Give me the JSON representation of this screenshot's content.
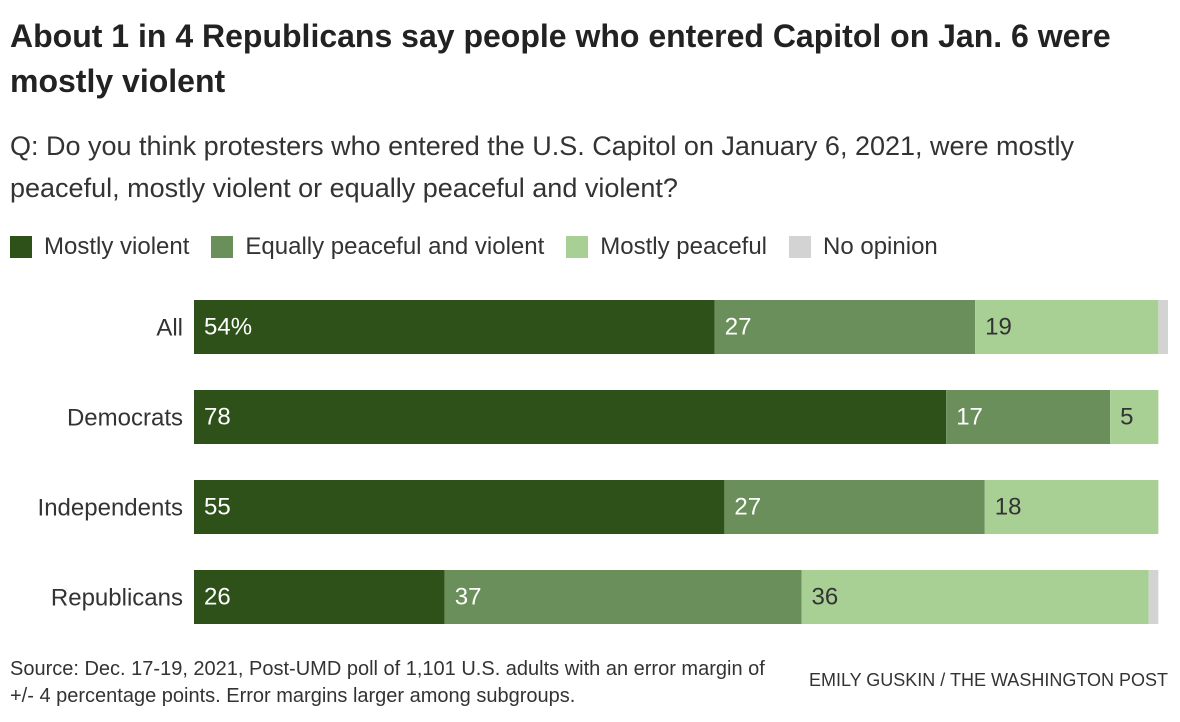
{
  "chart_data": {
    "type": "stacked_bar_horizontal",
    "title": "About 1 in 4 Republicans say people who entered Capitol on Jan. 6 were mostly violent",
    "subtitle": "Q: Do you think protesters who entered the U.S. Capitol on January 6, 2021, were mostly peaceful, mostly violent or equally peaceful and violent?",
    "categories": [
      "All",
      "Democrats",
      "Independents",
      "Republicans"
    ],
    "series": [
      {
        "name": "Mostly violent",
        "color": "#2e5019",
        "values": [
          54,
          78,
          55,
          26
        ],
        "value_labels": [
          "54%",
          "78",
          "55",
          "26"
        ]
      },
      {
        "name": "Equally peaceful and violent",
        "color": "#6a8f5a",
        "values": [
          27,
          17,
          27,
          37
        ]
      },
      {
        "name": "Mostly peaceful",
        "color": "#a8cf94",
        "values": [
          19,
          5,
          18,
          36
        ]
      },
      {
        "name": "No opinion",
        "color": "#d3d3d3",
        "values": [
          1,
          0,
          0,
          1
        ]
      }
    ],
    "source": "Source: Dec. 17-19, 2021, Post-UMD poll of 1,101 U.S. adults with an error margin of +/- 4 percentage points. Error margins larger among subgroups.",
    "credit": "EMILY GUSKIN / THE WASHINGTON POST"
  }
}
